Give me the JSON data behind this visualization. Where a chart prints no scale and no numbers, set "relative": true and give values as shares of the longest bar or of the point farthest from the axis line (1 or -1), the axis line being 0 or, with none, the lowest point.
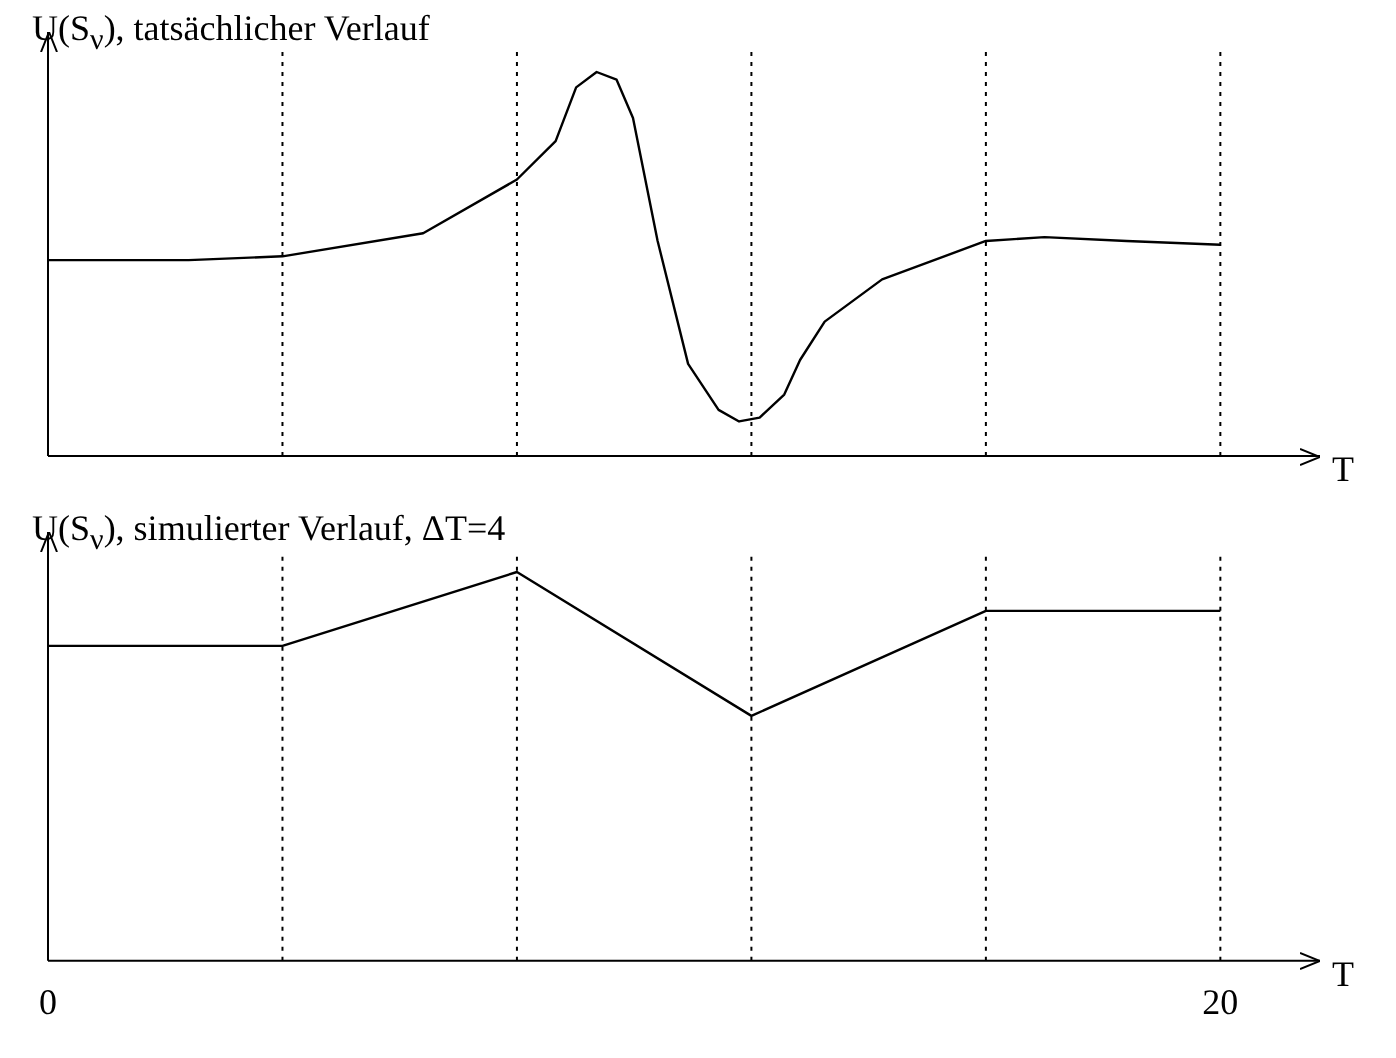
{
  "chart_data": [
    {
      "type": "line",
      "title": "U(S$_{ν}$), tatsächlicher Verlauf",
      "xlabel": "T",
      "relative": true,
      "xlim": [
        0,
        21.7
      ],
      "tick_labels": false,
      "grid": false,
      "legend": false,
      "marker": "none",
      "line_style": "solid",
      "ref_lines": [
        {
          "axis": "x",
          "value": 4,
          "line_style": "dotted"
        },
        {
          "axis": "x",
          "value": 8,
          "line_style": "dotted"
        },
        {
          "axis": "x",
          "value": 12,
          "line_style": "dotted"
        },
        {
          "axis": "x",
          "value": 16,
          "line_style": "dotted"
        },
        {
          "axis": "x",
          "value": 20,
          "line_style": "dotted"
        }
      ],
      "series": [
        {
          "color": "#000000",
          "x": [
            0,
            2.4,
            4,
            6.4,
            8,
            8.66,
            9.01,
            9.36,
            9.7,
            9.98,
            10.4,
            10.92,
            11.44,
            11.79,
            12.14,
            12.56,
            12.83,
            13.25,
            14.23,
            16,
            17,
            18.4,
            20
          ],
          "values": [
            0.51,
            0.51,
            0.52,
            0.58,
            0.72,
            0.82,
            0.96,
            1,
            0.98,
            0.88,
            0.56,
            0.24,
            0.12,
            0.09,
            0.1,
            0.16,
            0.25,
            0.35,
            0.46,
            0.56,
            0.57,
            0.56,
            0.55
          ]
        }
      ]
    },
    {
      "type": "line",
      "title": "U(S$_{ν}$), simulierter Verlauf, ΔT=4",
      "xlabel": "T",
      "relative": true,
      "xlim": [
        0,
        21.7
      ],
      "xticks": [
        0,
        20
      ],
      "tick_labels": "x",
      "grid": false,
      "legend": false,
      "marker": "none",
      "line_style": "solid",
      "ref_lines": [
        {
          "axis": "x",
          "value": 4,
          "line_style": "dotted"
        },
        {
          "axis": "x",
          "value": 8,
          "line_style": "dotted"
        },
        {
          "axis": "x",
          "value": 12,
          "line_style": "dotted"
        },
        {
          "axis": "x",
          "value": 16,
          "line_style": "dotted"
        },
        {
          "axis": "x",
          "value": 20,
          "line_style": "dotted"
        }
      ],
      "series": [
        {
          "color": "#000000",
          "x": [
            0,
            4,
            8,
            12,
            16,
            20
          ],
          "values": [
            0.81,
            0.81,
            1,
            0.63,
            0.9,
            0.9
          ]
        }
      ]
    }
  ]
}
